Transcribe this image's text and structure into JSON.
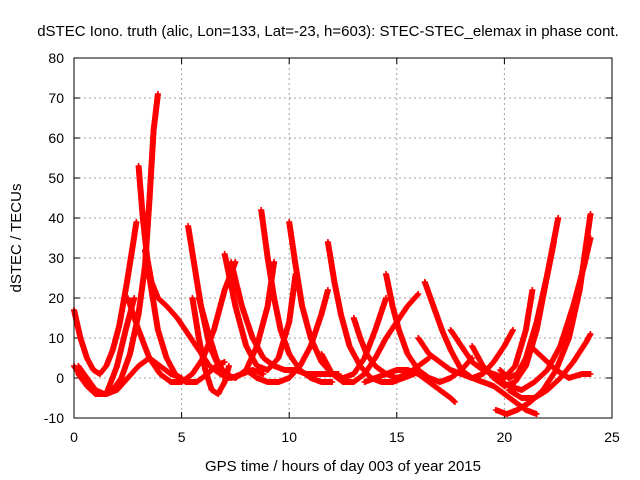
{
  "chart_data": {
    "type": "scatter",
    "title": "dSTEC Iono. truth (alic, Lon=133, Lat=-23, h=603): STEC-STEC_elemax in phase cont.",
    "xlabel": "GPS time / hours of day 003 of year 2015",
    "ylabel": "dSTEC  / TECUs",
    "xlim": [
      0,
      25
    ],
    "ylim": [
      -10,
      80
    ],
    "x_ticks": [
      "0",
      "5",
      "10",
      "15",
      "20",
      "25"
    ],
    "y_ticks": [
      "-10",
      "0",
      "10",
      "20",
      "30",
      "40",
      "50",
      "60",
      "70",
      "80"
    ],
    "grid": true,
    "marker": "plus",
    "color": "#ff0000",
    "series": [
      {
        "x": [
          0.0,
          0.3,
          0.6,
          0.9,
          1.2,
          1.5,
          1.8,
          2.1,
          2.4,
          2.7,
          2.9
        ],
        "y": [
          17,
          10,
          5,
          2,
          1,
          3,
          7,
          13,
          22,
          32,
          39
        ]
      },
      {
        "x": [
          0.2,
          0.6,
          1.0,
          1.4,
          1.8,
          2.2,
          2.6,
          3.0,
          3.3,
          3.5,
          3.7,
          3.9
        ],
        "y": [
          3,
          0,
          -3,
          -4,
          -3,
          0,
          6,
          16,
          28,
          44,
          62,
          71
        ]
      },
      {
        "x": [
          3.0,
          3.2,
          3.4,
          3.6,
          3.9,
          4.3,
          4.8,
          5.3,
          5.8,
          6.3,
          6.8,
          7.2
        ],
        "y": [
          53,
          40,
          30,
          24,
          20,
          18,
          15,
          11,
          7,
          3,
          1,
          0
        ]
      },
      {
        "x": [
          0.2,
          0.6,
          1.0,
          1.5,
          2.0,
          2.5,
          3.0,
          3.5,
          4.0,
          4.5,
          5.0
        ],
        "y": [
          1,
          -2,
          -4,
          -4,
          -3,
          0,
          3,
          5,
          3,
          1,
          0
        ]
      },
      {
        "x": [
          0.0,
          0.5,
          1.0,
          1.5,
          2.0,
          2.4,
          2.8
        ],
        "y": [
          3,
          -1,
          -4,
          -4,
          3,
          12,
          20
        ]
      },
      {
        "x": [
          2.5,
          3.0,
          3.5,
          4.0,
          4.5,
          5.0,
          5.5,
          6.0,
          6.5,
          7.0,
          7.5
        ],
        "y": [
          20,
          12,
          5,
          1,
          -1,
          -1,
          1,
          5,
          12,
          22,
          29
        ]
      },
      {
        "x": [
          3.3,
          3.6,
          3.9,
          4.3,
          4.7,
          5.2,
          5.7,
          6.2,
          6.6,
          7.0
        ],
        "y": [
          32,
          22,
          12,
          5,
          1,
          -1,
          -1,
          1,
          3,
          4
        ]
      },
      {
        "x": [
          5.3,
          5.6,
          5.9,
          6.3,
          6.8,
          7.3,
          7.8,
          8.3,
          8.8
        ],
        "y": [
          38,
          28,
          18,
          8,
          2,
          0,
          1,
          2,
          1
        ]
      },
      {
        "x": [
          5.5,
          5.8,
          6.1,
          6.4,
          6.7,
          7.0,
          7.2
        ],
        "y": [
          20,
          10,
          2,
          -3,
          -4,
          -1,
          3
        ]
      },
      {
        "x": [
          5.8,
          6.2,
          6.6,
          7.0,
          7.5,
          8.0,
          8.5,
          9.0,
          9.3
        ],
        "y": [
          20,
          12,
          5,
          1,
          0,
          2,
          8,
          18,
          29
        ]
      },
      {
        "x": [
          7.0,
          7.5,
          8.0,
          8.5,
          9.0,
          9.5,
          10.0,
          10.3
        ],
        "y": [
          31,
          18,
          8,
          3,
          2,
          5,
          14,
          26
        ]
      },
      {
        "x": [
          7.3,
          7.8,
          8.3,
          8.8,
          9.3,
          9.8,
          10.3,
          10.8,
          11.3,
          11.8,
          12.3
        ],
        "y": [
          29,
          18,
          10,
          5,
          3,
          2,
          2,
          1,
          1,
          1,
          1
        ]
      },
      {
        "x": [
          8.7,
          9.0,
          9.3,
          9.6,
          10.0,
          10.5,
          11.0,
          11.5,
          12.0
        ],
        "y": [
          42,
          30,
          20,
          12,
          6,
          2,
          0,
          -1,
          -1
        ]
      },
      {
        "x": [
          10.0,
          10.3,
          10.6,
          11.0,
          11.5,
          12.0,
          12.5,
          13.0,
          13.5,
          14.0,
          14.5
        ],
        "y": [
          39,
          28,
          18,
          10,
          4,
          1,
          0,
          1,
          5,
          12,
          20
        ]
      },
      {
        "x": [
          8.0,
          8.5,
          9.0,
          9.5,
          10.0,
          10.5,
          11.0,
          11.5,
          11.8
        ],
        "y": [
          2,
          0,
          -1,
          -1,
          0,
          3,
          8,
          16,
          22
        ]
      },
      {
        "x": [
          11.8,
          12.1,
          12.4,
          12.8,
          13.3,
          13.8,
          14.3,
          14.8,
          15.3,
          15.8
        ],
        "y": [
          34,
          24,
          16,
          8,
          3,
          0,
          -1,
          -1,
          0,
          1
        ]
      },
      {
        "x": [
          11.5,
          12.0,
          12.5,
          13.0,
          13.5,
          14.0,
          14.5,
          15.0,
          15.5,
          16.0
        ],
        "y": [
          6,
          1,
          -1,
          -1,
          1,
          5,
          10,
          14,
          18,
          21
        ]
      },
      {
        "x": [
          13.0,
          13.3,
          13.6,
          14.0,
          14.5,
          15.0,
          15.5,
          16.0,
          16.5
        ],
        "y": [
          15,
          10,
          6,
          3,
          1,
          0,
          1,
          3,
          5
        ]
      },
      {
        "x": [
          14.5,
          14.8,
          15.1,
          15.5,
          16.0,
          16.5,
          17.0,
          17.5,
          18.0,
          18.5
        ],
        "y": [
          26,
          18,
          12,
          6,
          2,
          0,
          -1,
          0,
          2,
          5
        ]
      },
      {
        "x": [
          16.3,
          16.7,
          17.1,
          17.5,
          18.0,
          18.5,
          19.0,
          19.5,
          20.0,
          20.4
        ],
        "y": [
          24,
          18,
          12,
          7,
          2,
          0,
          1,
          4,
          8,
          12
        ]
      },
      {
        "x": [
          13.5,
          14.0,
          14.5,
          15.0,
          15.5,
          16.0,
          16.5,
          17.0,
          17.5,
          17.7
        ],
        "y": [
          -1,
          0,
          1,
          2,
          2,
          1,
          -1,
          -3,
          -5,
          -6
        ]
      },
      {
        "x": [
          16.0,
          16.5,
          17.0,
          17.5,
          18.0,
          18.5,
          19.0,
          19.5,
          20.0,
          20.5,
          21.0,
          21.5
        ],
        "y": [
          10,
          6,
          4,
          2,
          1,
          0,
          -1,
          -2,
          -4,
          -6,
          -8,
          -9
        ]
      },
      {
        "x": [
          17.5,
          18.0,
          18.5,
          19.0,
          19.5,
          20.0,
          20.5,
          21.0,
          21.3
        ],
        "y": [
          12,
          8,
          4,
          2,
          1,
          0,
          3,
          12,
          22
        ]
      },
      {
        "x": [
          18.5,
          19.0,
          19.5,
          20.0,
          20.5,
          21.0,
          21.5,
          22.0,
          22.5
        ],
        "y": [
          8,
          3,
          0,
          -2,
          -1,
          3,
          12,
          26,
          40
        ]
      },
      {
        "x": [
          19.8,
          20.2,
          20.6,
          21.0,
          21.5,
          22.0,
          22.3
        ],
        "y": [
          2,
          0,
          1,
          5,
          14,
          26,
          34
        ]
      },
      {
        "x": [
          19.6,
          20.1,
          20.6,
          21.2,
          21.8,
          22.4,
          23.0,
          23.5,
          24.0
        ],
        "y": [
          -8,
          -9,
          -8,
          -6,
          -3,
          2,
          10,
          22,
          41
        ]
      },
      {
        "x": [
          19.0,
          19.6,
          20.2,
          20.8,
          21.4,
          22.0,
          22.6,
          23.2,
          23.7,
          24.0
        ],
        "y": [
          3,
          0,
          -2,
          -3,
          -1,
          2,
          8,
          18,
          28,
          35
        ]
      },
      {
        "x": [
          20.2,
          20.8,
          21.4,
          22.0,
          22.6,
          23.2,
          23.8,
          24.0
        ],
        "y": [
          -3,
          -5,
          -5,
          -3,
          0,
          4,
          9,
          11
        ]
      },
      {
        "x": [
          21.2,
          21.8,
          22.4,
          23.0,
          23.6,
          24.0
        ],
        "y": [
          8,
          5,
          2,
          0,
          1,
          1
        ]
      }
    ]
  }
}
